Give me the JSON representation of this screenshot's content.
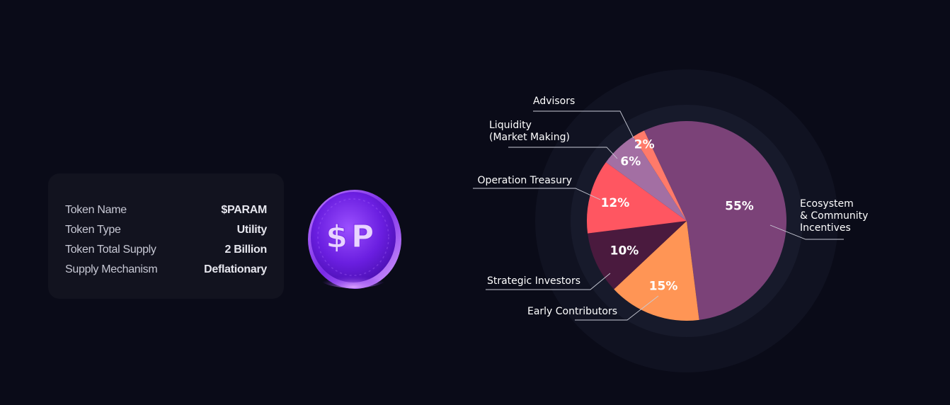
{
  "token_info": {
    "rows": [
      {
        "label": "Token Name",
        "value": "$PARAM"
      },
      {
        "label": "Token Type",
        "value": "Utility"
      },
      {
        "label": "Token Total Supply",
        "value": "2 Billion"
      },
      {
        "label": "Supply Mechanism",
        "value": "Deflationary"
      }
    ]
  },
  "coin": {
    "glyph_left": "$",
    "glyph_right": "P",
    "colors": {
      "face": "#7c2cf0",
      "rim": "#9a4dff",
      "glow": "#c77dff"
    }
  },
  "chart_data": {
    "type": "pie",
    "title": "",
    "slices": [
      {
        "label": "Ecosystem\n& Community\nIncentives",
        "lines": [
          "Ecosystem",
          "& Community",
          "Incentives"
        ],
        "value": 55,
        "display": "55%",
        "color": "#7b4278"
      },
      {
        "label": "Early Contributors",
        "lines": [
          "Early Contributors"
        ],
        "value": 15,
        "display": "15%",
        "color": "#ff9555"
      },
      {
        "label": "Strategic Investors",
        "lines": [
          "Strategic Investors"
        ],
        "value": 10,
        "display": "10%",
        "color": "#4a1a3e"
      },
      {
        "label": "Operation Treasury",
        "lines": [
          "Operation Treasury"
        ],
        "value": 12,
        "display": "12%",
        "color": "#ff5661"
      },
      {
        "label": "Liquidity\n(Market Making)",
        "lines": [
          "Liquidity",
          "(Market Making)"
        ],
        "value": 6,
        "display": "6%",
        "color": "#a36fa3"
      },
      {
        "label": "Advisors",
        "lines": [
          "Advisors"
        ],
        "value": 2,
        "display": "2%",
        "color": "#ff7a6a"
      }
    ]
  }
}
